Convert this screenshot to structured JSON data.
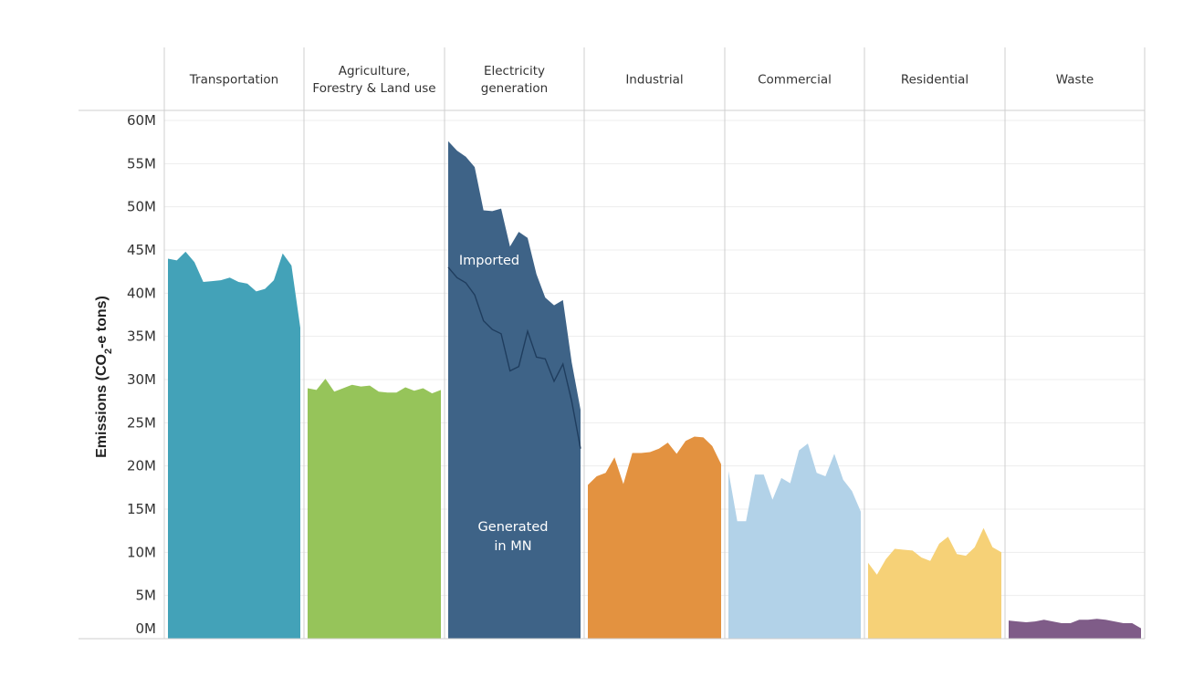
{
  "chart_data": {
    "type": "area",
    "ylabel_main": "Emissions (CO",
    "ylabel_sub": "2",
    "ylabel_tail": "-e tons)",
    "ylim": [
      0,
      60
    ],
    "yticks": [
      {
        "value": 0,
        "label": "0M"
      },
      {
        "value": 5,
        "label": "5M"
      },
      {
        "value": 10,
        "label": "10M"
      },
      {
        "value": 15,
        "label": "15M"
      },
      {
        "value": 20,
        "label": "20M"
      },
      {
        "value": 25,
        "label": "25M"
      },
      {
        "value": 30,
        "label": "30M"
      },
      {
        "value": 35,
        "label": "35M"
      },
      {
        "value": 40,
        "label": "40M"
      },
      {
        "value": 45,
        "label": "45M"
      },
      {
        "value": 50,
        "label": "50M"
      },
      {
        "value": 55,
        "label": "55M"
      },
      {
        "value": 60,
        "label": "60M"
      }
    ],
    "grid": true,
    "legend": "none",
    "panels": [
      {
        "id": "transportation",
        "label_lines": [
          "Transportation"
        ],
        "color": "#43A2B8",
        "values": [
          44.0,
          43.8,
          44.8,
          43.6,
          41.3,
          41.4,
          41.5,
          41.8,
          41.3,
          41.1,
          40.2,
          40.5,
          41.5,
          44.6,
          43.2,
          36.0
        ]
      },
      {
        "id": "agriculture",
        "label_lines": [
          "Agriculture,",
          "Forestry & Land use"
        ],
        "color": "#96C45A",
        "values": [
          29.0,
          28.8,
          30.1,
          28.6,
          29.0,
          29.4,
          29.2,
          29.3,
          28.6,
          28.5,
          28.5,
          29.1,
          28.7,
          29.0,
          28.4,
          28.8
        ]
      },
      {
        "id": "electricity",
        "label_lines": [
          "Electricity",
          "generation"
        ],
        "color": "#3E6387",
        "values": [
          57.6,
          56.5,
          55.8,
          54.6,
          49.6,
          49.5,
          49.8,
          45.4,
          47.1,
          46.4,
          42.2,
          39.5,
          38.6,
          39.2,
          32.0,
          26.5
        ],
        "inner_values": [
          43.0,
          41.8,
          41.2,
          39.8,
          36.8,
          35.8,
          35.3,
          31.0,
          31.5,
          35.6,
          32.6,
          32.4,
          29.8,
          31.8,
          27.5,
          22.0
        ],
        "annotation_top": "Imported",
        "annotation_bottom": [
          "Generated",
          "in MN"
        ]
      },
      {
        "id": "industrial",
        "label_lines": [
          "Industrial"
        ],
        "color": "#E39240",
        "values": [
          17.8,
          18.8,
          19.2,
          21.0,
          17.9,
          21.5,
          21.5,
          21.6,
          22.0,
          22.7,
          21.4,
          22.9,
          23.4,
          23.3,
          22.3,
          20.2
        ]
      },
      {
        "id": "commercial",
        "label_lines": [
          "Commercial"
        ],
        "color": "#B2D2E8",
        "values": [
          19.4,
          13.6,
          13.6,
          19.0,
          19.0,
          16.1,
          18.6,
          18.0,
          21.8,
          22.6,
          19.2,
          18.8,
          21.4,
          18.4,
          17.1,
          14.7
        ]
      },
      {
        "id": "residential",
        "label_lines": [
          "Residential"
        ],
        "color": "#F6D177",
        "values": [
          8.8,
          7.4,
          9.2,
          10.4,
          10.3,
          10.2,
          9.4,
          9.0,
          11.0,
          11.8,
          9.8,
          9.6,
          10.6,
          12.8,
          10.6,
          10.0
        ]
      },
      {
        "id": "waste",
        "label_lines": [
          "Waste"
        ],
        "color": "#7F5C88",
        "values": [
          2.1,
          2.0,
          1.9,
          2.0,
          2.2,
          2.0,
          1.8,
          1.8,
          2.2,
          2.2,
          2.3,
          2.2,
          2.0,
          1.8,
          1.8,
          1.2
        ]
      }
    ]
  }
}
